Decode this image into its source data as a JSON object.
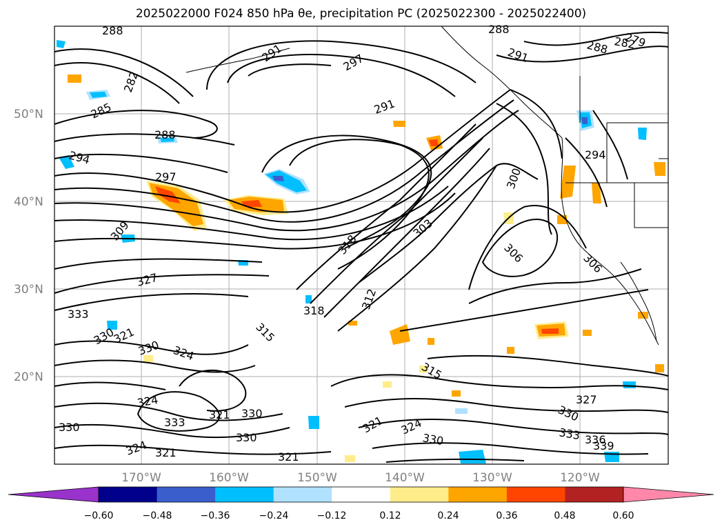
{
  "title": "2025022000 F024 850 hPa θe, precipitation PC (2025022300 - 2025022400)",
  "map": {
    "lat_ticks": [
      "50°N",
      "40°N",
      "30°N",
      "20°N"
    ],
    "lon_ticks": [
      "170°W",
      "160°W",
      "150°W",
      "140°W",
      "130°W",
      "120°W"
    ],
    "contour_labels": [
      "288",
      "291",
      "297",
      "282",
      "285",
      "288",
      "294",
      "297",
      "309",
      "327",
      "333",
      "330",
      "321",
      "330",
      "324",
      "324",
      "333",
      "330",
      "321",
      "330",
      "321",
      "330",
      "318",
      "315",
      "312",
      "318",
      "303",
      "306",
      "306",
      "300",
      "294",
      "291",
      "288",
      "291",
      "279",
      "288",
      "282",
      "321",
      "324",
      "330",
      "327",
      "330",
      "333",
      "336",
      "339",
      "315",
      "324",
      "321"
    ]
  },
  "colorbar": {
    "ticks": [
      "−0.60",
      "−0.48",
      "−0.36",
      "−0.24",
      "−0.12",
      "0.12",
      "0.24",
      "0.36",
      "0.48",
      "0.60"
    ],
    "colors": [
      "#9933cc",
      "#00008b",
      "#3a5fcd",
      "#00bfff",
      "#b0e2ff",
      "#ffffff",
      "#ffec8b",
      "#ffa500",
      "#ff4500",
      "#b22222",
      "#ff88aa"
    ]
  }
}
